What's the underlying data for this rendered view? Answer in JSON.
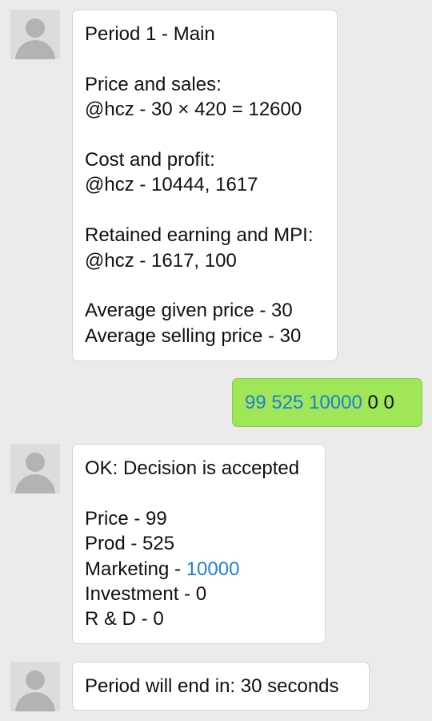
{
  "messages": [
    {
      "sender": "incoming",
      "lines": [
        "Period 1 - Main",
        "",
        "Price and sales:",
        "@hcz - 30 × 420 = 12600",
        "",
        "Cost and profit:",
        "@hcz - 10444, 1617",
        "",
        "Retained earning and MPI:",
        "@hcz - 1617, 100",
        "",
        "Average given price - 30",
        "Average selling price - 30"
      ]
    },
    {
      "sender": "outgoing",
      "link_text": "99 525 10000",
      "rest_text": " 0 0"
    },
    {
      "sender": "incoming",
      "lines": [
        "OK: Decision is accepted",
        "",
        "Price - 99",
        "Prod - 525"
      ],
      "marketing_label": "Marketing - ",
      "marketing_value": "10000",
      "tail_lines": [
        "Investment - 0",
        "R & D - 0"
      ]
    },
    {
      "sender": "incoming",
      "lines": [
        "Period will end in: 30 seconds"
      ]
    }
  ],
  "colors": {
    "background": "#ebebeb",
    "incoming_bubble": "#ffffff",
    "outgoing_bubble": "#9fe658",
    "link": "#1f7ed8",
    "avatar_placeholder": "#b3b3b3"
  },
  "icons": {
    "avatar": "default-user-avatar-icon"
  }
}
